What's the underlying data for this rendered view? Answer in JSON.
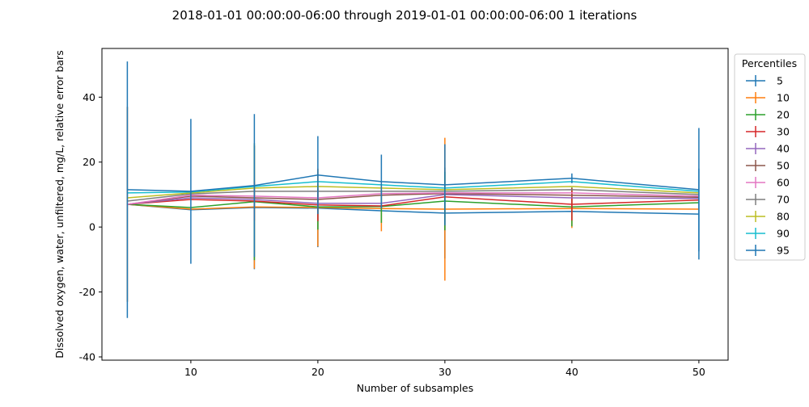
{
  "chart_data": {
    "type": "line",
    "title": "2018-01-01 00:00:00-06:00 through 2019-01-01 00:00:00-06:00 1 iterations",
    "xlabel": "Number of subsamples",
    "ylabel": "Dissolved oxygen, water, unfiltered, mg/L, relative error bars",
    "xlim": [
      3,
      52.3
    ],
    "ylim": [
      -41,
      55
    ],
    "xticks": [
      10,
      20,
      30,
      40,
      50
    ],
    "yticks": [
      -40,
      -20,
      0,
      20,
      40
    ],
    "grid": false,
    "legend": {
      "title": "Percentiles",
      "position": "outside-right"
    },
    "x": [
      5,
      10,
      15,
      20,
      25,
      30,
      40,
      50
    ],
    "series": [
      {
        "name": "5",
        "color": "#1f77b4",
        "values": [
          7.0,
          5.3,
          6.0,
          5.8,
          5.0,
          4.3,
          4.8,
          4.0
        ],
        "errors": [
          30,
          0,
          19,
          12,
          0,
          14,
          0,
          14
        ]
      },
      {
        "name": "10",
        "color": "#ff7f0e",
        "values": [
          7.0,
          5.5,
          6.2,
          6.0,
          5.7,
          5.5,
          5.7,
          5.5
        ],
        "errors": [
          30,
          0,
          19,
          12,
          7,
          22,
          6,
          0
        ]
      },
      {
        "name": "20",
        "color": "#2ca02c",
        "values": [
          7.0,
          6.0,
          7.8,
          6.2,
          6.3,
          8.0,
          6.2,
          7.5
        ],
        "errors": [
          0,
          0,
          18,
          7,
          5,
          9,
          6,
          0
        ]
      },
      {
        "name": "30",
        "color": "#d62728",
        "values": [
          7.0,
          8.5,
          8.0,
          6.8,
          6.5,
          9.3,
          7.0,
          8.3
        ],
        "errors": [
          0,
          0,
          6,
          5,
          0,
          0,
          5,
          0
        ]
      },
      {
        "name": "40",
        "color": "#9467bd",
        "values": [
          7.0,
          9.0,
          8.5,
          7.3,
          7.3,
          10.0,
          9.0,
          8.8
        ],
        "errors": [
          0,
          0,
          0,
          0,
          0,
          0,
          0,
          0
        ]
      },
      {
        "name": "50",
        "color": "#8c564b",
        "values": [
          7.0,
          9.5,
          9.0,
          8.5,
          9.8,
          10.3,
          9.8,
          9.2
        ],
        "errors": [
          0,
          0,
          0,
          0,
          0,
          0,
          0,
          0
        ]
      },
      {
        "name": "60",
        "color": "#e377c2",
        "values": [
          7.0,
          9.8,
          9.5,
          9.0,
          10.3,
          10.5,
          10.5,
          9.5
        ],
        "errors": [
          0,
          0,
          0,
          0,
          0,
          0,
          0,
          0
        ]
      },
      {
        "name": "70",
        "color": "#7f7f7f",
        "values": [
          8.0,
          10.2,
          11.0,
          11.0,
          11.0,
          11.0,
          11.5,
          10.0
        ],
        "errors": [
          0,
          0,
          0,
          0,
          0,
          0,
          0,
          0
        ]
      },
      {
        "name": "80",
        "color": "#bcbd22",
        "values": [
          9.0,
          10.5,
          12.0,
          12.5,
          12.0,
          11.5,
          12.5,
          10.5
        ],
        "errors": [
          0,
          0,
          0,
          0,
          0,
          0,
          0,
          0
        ]
      },
      {
        "name": "90",
        "color": "#17becf",
        "values": [
          10.5,
          10.8,
          12.5,
          14.0,
          13.0,
          12.0,
          14.0,
          11.0
        ],
        "errors": [
          0,
          0,
          0,
          0,
          0,
          0,
          0,
          0
        ]
      },
      {
        "name": "95",
        "color": "#1f77b4",
        "values": [
          11.5,
          11.0,
          12.8,
          16.0,
          14.0,
          13.0,
          15.0,
          11.5
        ],
        "errors": [
          39.5,
          22.3,
          22.0,
          12.0,
          8.3,
          12.5,
          1.5,
          19.0
        ]
      }
    ]
  }
}
